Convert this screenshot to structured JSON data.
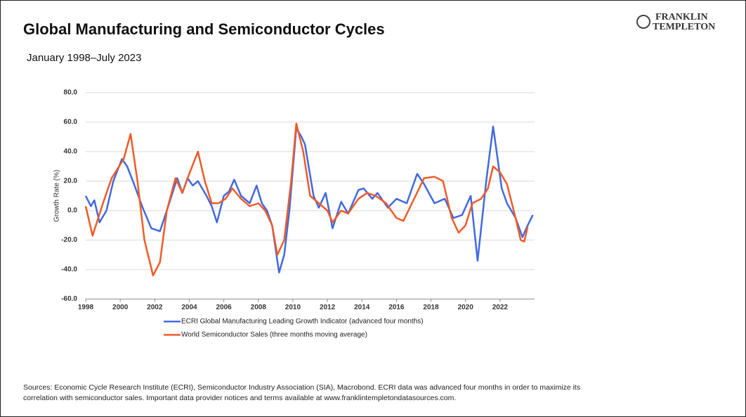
{
  "brand": {
    "line1": "FRANKLIN",
    "line2": "TEMPLETON"
  },
  "chart_data": {
    "type": "line",
    "title": "Global Manufacturing and Semiconductor Cycles",
    "subtitle": "January 1998–July 2023",
    "y_label": "Growth Rate (%)",
    "xlim": [
      1998,
      2024
    ],
    "xticks": [
      1998,
      2000,
      2002,
      2004,
      2006,
      2008,
      2010,
      2012,
      2014,
      2016,
      2018,
      2020,
      2022
    ],
    "ylim": [
      -60,
      80
    ],
    "yticks": [
      {
        "value": -60,
        "label": "-60.0"
      },
      {
        "value": -40,
        "label": "-40.0"
      },
      {
        "value": -20,
        "label": "-20.0"
      },
      {
        "value": 0,
        "label": "0.0"
      },
      {
        "value": 20,
        "label": "20.0"
      },
      {
        "value": 40,
        "label": "40.0"
      },
      {
        "value": 60,
        "label": "60.0"
      },
      {
        "value": 80,
        "label": "80.0"
      }
    ],
    "grid": true,
    "series": [
      {
        "name": "ECRI Global Manufacturing Leading Growth Indicator (advanced four months)",
        "color": "#4169e1",
        "x": [
          1998,
          1998.3,
          1998.5,
          1998.8,
          1999.2,
          1999.6,
          2000.1,
          2000.4,
          2000.8,
          2001.3,
          2001.8,
          2002.3,
          2002.7,
          2003.3,
          2003.6,
          2003.9,
          2004.2,
          2004.5,
          2005.0,
          2005.3,
          2005.6,
          2006.0,
          2006.3,
          2006.6,
          2007.0,
          2007.5,
          2007.9,
          2008.2,
          2008.5,
          2008.8,
          2009.2,
          2009.5,
          2009.8,
          2010.2,
          2010.5,
          2010.7,
          2011.2,
          2011.5,
          2011.9,
          2012.3,
          2012.8,
          2013.2,
          2013.8,
          2014.1,
          2014.6,
          2014.9,
          2015.5,
          2016.0,
          2016.6,
          2017.2,
          2017.6,
          2018.2,
          2018.8,
          2019.3,
          2019.8,
          2020.3,
          2020.7,
          2021.2,
          2021.6,
          2022.1,
          2022.4,
          2022.9,
          2023.3,
          2023.6,
          2023.9
        ],
        "values": [
          10,
          3,
          7,
          -8,
          0,
          20,
          35,
          30,
          18,
          2,
          -12,
          -14,
          0,
          22,
          12,
          22,
          17,
          20,
          10,
          3,
          -8,
          10,
          13,
          21,
          10,
          5,
          17,
          5,
          0,
          -10,
          -42,
          -30,
          0,
          56,
          50,
          45,
          10,
          2,
          12,
          -12,
          6,
          -2,
          14,
          15,
          8,
          12,
          2,
          8,
          5,
          25,
          18,
          5,
          8,
          -5,
          -3,
          10,
          -34,
          20,
          57,
          15,
          5,
          -5,
          -18,
          -10,
          -3
        ]
      },
      {
        "name": "World Semiconductor Sales (three months moving average)",
        "color": "#f05a28",
        "x": [
          1998,
          1998.4,
          1999.0,
          1999.5,
          2000.2,
          2000.6,
          2001.0,
          2001.4,
          2001.9,
          2002.3,
          2002.7,
          2003.2,
          2003.6,
          2004.0,
          2004.5,
          2004.9,
          2005.3,
          2005.7,
          2006.1,
          2006.5,
          2007.0,
          2007.5,
          2008.0,
          2008.4,
          2008.8,
          2009.1,
          2009.5,
          2009.9,
          2010.2,
          2010.6,
          2011.0,
          2011.5,
          2012.0,
          2012.3,
          2012.8,
          2013.2,
          2013.8,
          2014.3,
          2014.8,
          2015.4,
          2016.0,
          2016.4,
          2016.9,
          2017.6,
          2018.2,
          2018.7,
          2019.2,
          2019.6,
          2020.0,
          2020.4,
          2020.9,
          2021.3,
          2021.6,
          2022.0,
          2022.4,
          2022.9,
          2023.2,
          2023.4,
          2023.6
        ],
        "values": [
          3,
          -17,
          5,
          22,
          35,
          52,
          20,
          -20,
          -44,
          -35,
          0,
          22,
          12,
          25,
          40,
          20,
          5,
          5,
          8,
          15,
          8,
          3,
          5,
          0,
          -10,
          -30,
          -20,
          20,
          59,
          40,
          10,
          5,
          0,
          -8,
          0,
          -2,
          8,
          12,
          10,
          5,
          -5,
          -7,
          5,
          22,
          23,
          20,
          -5,
          -15,
          -10,
          5,
          8,
          15,
          30,
          26,
          18,
          -5,
          -20,
          -21,
          -11
        ]
      }
    ]
  },
  "sources": "Sources: Economic Cycle Research Institute (ECRI), Semiconductor Industry Association (SIA), Macrobond. ECRI data was advanced four months in order to maximize its correlation with semiconductor sales. Important data provider notices and terms available at www.franklintempletondatasources.com."
}
